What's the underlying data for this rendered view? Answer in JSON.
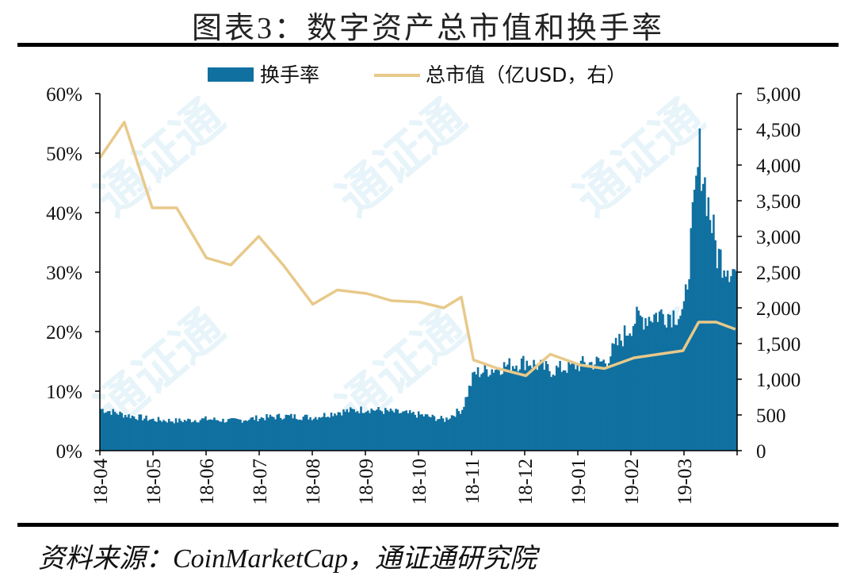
{
  "title": "图表3：数字资产总市值和换手率",
  "source": "资料来源：CoinMarketCap，通证通研究院",
  "watermark": "通证通",
  "colors": {
    "bar": "#1070a0",
    "line": "#e8c98a",
    "axis": "#000000",
    "watermark": "#c9e7f3"
  },
  "chart_data": {
    "type": "bar",
    "legend": [
      {
        "name": "换手率",
        "kind": "bar"
      },
      {
        "name": "总市值（亿USD，右）",
        "kind": "line"
      }
    ],
    "legend_position": "top-center",
    "grid": false,
    "y_left": {
      "min": 0,
      "max": 60,
      "ticks": [
        "0%",
        "10%",
        "20%",
        "30%",
        "40%",
        "50%",
        "60%"
      ]
    },
    "y_right": {
      "min": 0,
      "max": 5000,
      "ticks": [
        "0",
        "500",
        "1,000",
        "1,500",
        "2,000",
        "2,500",
        "3,000",
        "3,500",
        "4,000",
        "4,500",
        "5,000"
      ]
    },
    "x_ticks": [
      "18-04",
      "18-05",
      "18-06",
      "18-07",
      "18-08",
      "18-09",
      "18-10",
      "18-11",
      "18-12",
      "19-01",
      "19-02",
      "19-03"
    ],
    "x": [
      "18-04-01",
      "18-04-15",
      "18-05-01",
      "18-05-15",
      "18-06-01",
      "18-06-15",
      "18-07-01",
      "18-07-15",
      "18-08-01",
      "18-08-15",
      "18-09-01",
      "18-09-15",
      "18-10-01",
      "18-10-15",
      "18-10-25",
      "18-11-01",
      "18-11-15",
      "18-12-01",
      "18-12-15",
      "19-01-01",
      "19-01-15",
      "19-02-01",
      "19-02-15",
      "19-03-01",
      "19-03-10",
      "19-03-20",
      "19-03-31"
    ],
    "series": [
      {
        "name": "换手率",
        "type": "bar",
        "axis": "left",
        "values": [
          7,
          6,
          5.2,
          5,
          5.3,
          5,
          5.5,
          5.8,
          5.6,
          6.5,
          7,
          6.5,
          6,
          5.2,
          7,
          13,
          14,
          15,
          13.5,
          14.5,
          15,
          22,
          23,
          23,
          50,
          33,
          30
        ]
      },
      {
        "name": "总市值（亿USD，右）",
        "type": "line",
        "axis": "right",
        "values": [
          4100,
          4600,
          3400,
          3400,
          2700,
          2600,
          3000,
          2600,
          2050,
          2250,
          2200,
          2100,
          2080,
          2000,
          2150,
          1270,
          1150,
          1050,
          1350,
          1200,
          1150,
          1300,
          1350,
          1400,
          1800,
          1800,
          1700
        ]
      }
    ]
  }
}
